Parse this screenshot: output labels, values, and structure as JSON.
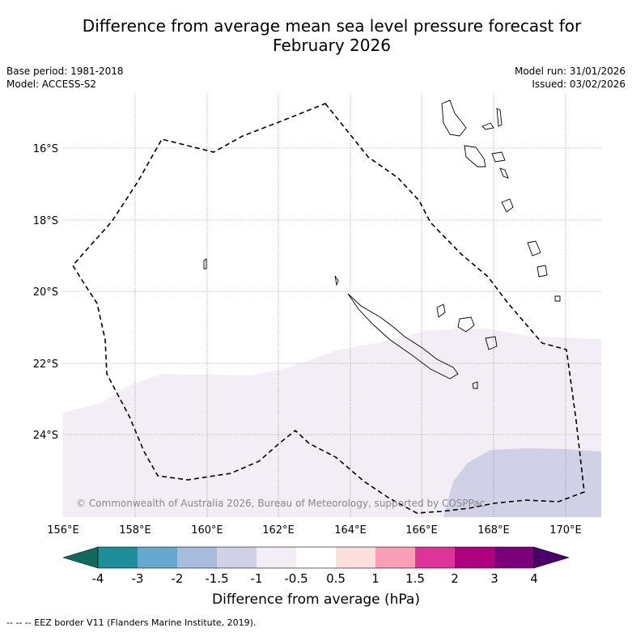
{
  "title_line1": "Difference from average mean sea level pressure forecast for",
  "title_line2": "February 2026",
  "base_period": "Base period: 1981-2018",
  "model": "Model: ACCESS-S2",
  "model_run": "Model run: 31/01/2026",
  "issued": "Issued: 03/02/2026",
  "copyright": "© Commonwealth of Australia 2026, Bureau of Meteorology, supported by COSPPac",
  "lon_ticks": [
    "156°E",
    "158°E",
    "160°E",
    "162°E",
    "164°E",
    "166°E",
    "168°E",
    "170°E"
  ],
  "lat_ticks": [
    "16°S",
    "18°S",
    "20°S",
    "22°S",
    "24°S"
  ],
  "colorbar": {
    "title": "Difference from average (hPa)",
    "tick_labels": [
      "-4",
      "-3",
      "-2",
      "-1.5",
      "-1",
      "-0.5",
      "0.5",
      "1",
      "1.5",
      "2",
      "3",
      "4"
    ],
    "colors": [
      "#0f6b5c",
      "#1c8f9a",
      "#66a9cf",
      "#a6bddb",
      "#d0d1e6",
      "#f3eef6",
      "#ffffff",
      "#fde0dd",
      "#fa9fb5",
      "#dd3497",
      "#ae017e",
      "#7a0177",
      "#49006a"
    ]
  },
  "legend_footnote": "--  --  -- EEZ border V11 (Flanders Marine Institute, 2019).",
  "regions": [
    {
      "name": "band -1 to -0.5",
      "color": "#f3eef6"
    },
    {
      "name": "band -1.5 to -1",
      "color": "#d0d1e6"
    }
  ]
}
